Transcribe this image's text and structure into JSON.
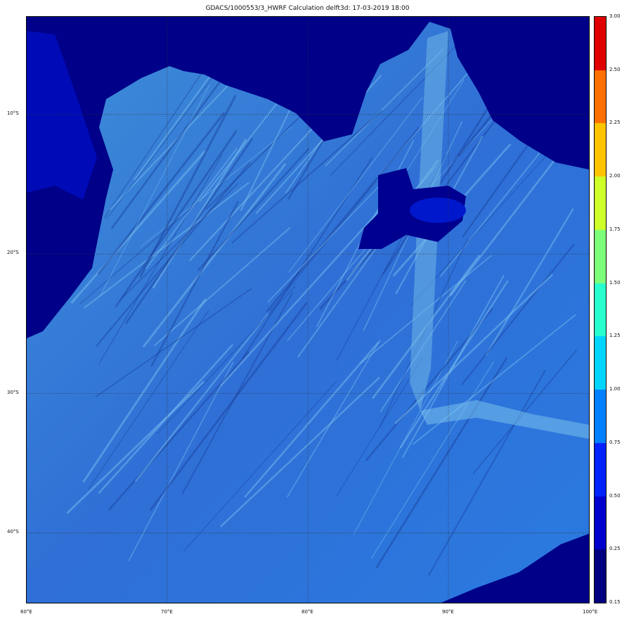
{
  "title": "GDACS/1000553/3_HWRF Calculation delft3d: 17-03-2019 18:00",
  "map": {
    "lon_range": [
      60,
      100
    ],
    "lat_range": [
      -3,
      -45
    ],
    "x_ticks": [
      "60°E",
      "70°E",
      "80°E",
      "90°E",
      "100°E"
    ],
    "y_ticks": [
      "10°S",
      "20°S",
      "30°S",
      "40°S"
    ],
    "grid": "dotted",
    "basemap": "shaded bathymetry",
    "land_color": "#00007f"
  },
  "colorbar": {
    "labels": [
      "0.15",
      "0.25",
      "0.50",
      "0.75",
      "1.00",
      "1.25",
      "1.50",
      "1.75",
      "2.00",
      "2.25",
      "2.50",
      "3.00"
    ],
    "colors": [
      "#000080",
      "#0000cd",
      "#0022ff",
      "#0080ff",
      "#00d4ff",
      "#29ffce",
      "#7dff7a",
      "#ceff29",
      "#ffc400",
      "#ff7000",
      "#e00000"
    ]
  }
}
